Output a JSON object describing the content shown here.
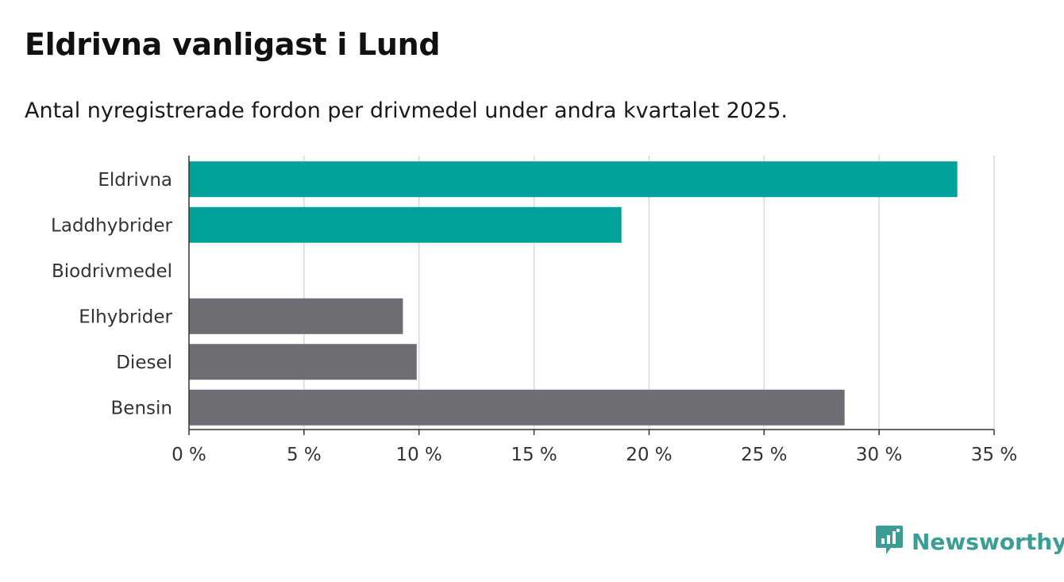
{
  "title": "Eldrivna vanligast i Lund",
  "subtitle": "Antal nyregistrerade fordon per drivmedel under andra kvartalet 2025.",
  "brand": {
    "name": "Newsworthy",
    "color": "#3a9e96",
    "icon": "newsworthy-chart-bubble-icon"
  },
  "chart_data": {
    "type": "bar",
    "orientation": "horizontal",
    "categories": [
      "Eldrivna",
      "Laddhybrider",
      "Biodrivmedel",
      "Elhybrider",
      "Diesel",
      "Bensin"
    ],
    "values": [
      33.4,
      18.8,
      0,
      9.3,
      9.9,
      28.5
    ],
    "colors": [
      "#00a399",
      "#00a399",
      "#00a399",
      "#6e6d74",
      "#6e6d74",
      "#6e6d74"
    ],
    "xlim": [
      0,
      35
    ],
    "xticks": [
      0,
      5,
      10,
      15,
      20,
      25,
      30,
      35
    ],
    "xtick_labels": [
      "0 %",
      "5 %",
      "10 %",
      "15 %",
      "20 %",
      "25 %",
      "30 %",
      "35 %"
    ],
    "xlabel": "",
    "ylabel": "",
    "grid": "vertical"
  }
}
